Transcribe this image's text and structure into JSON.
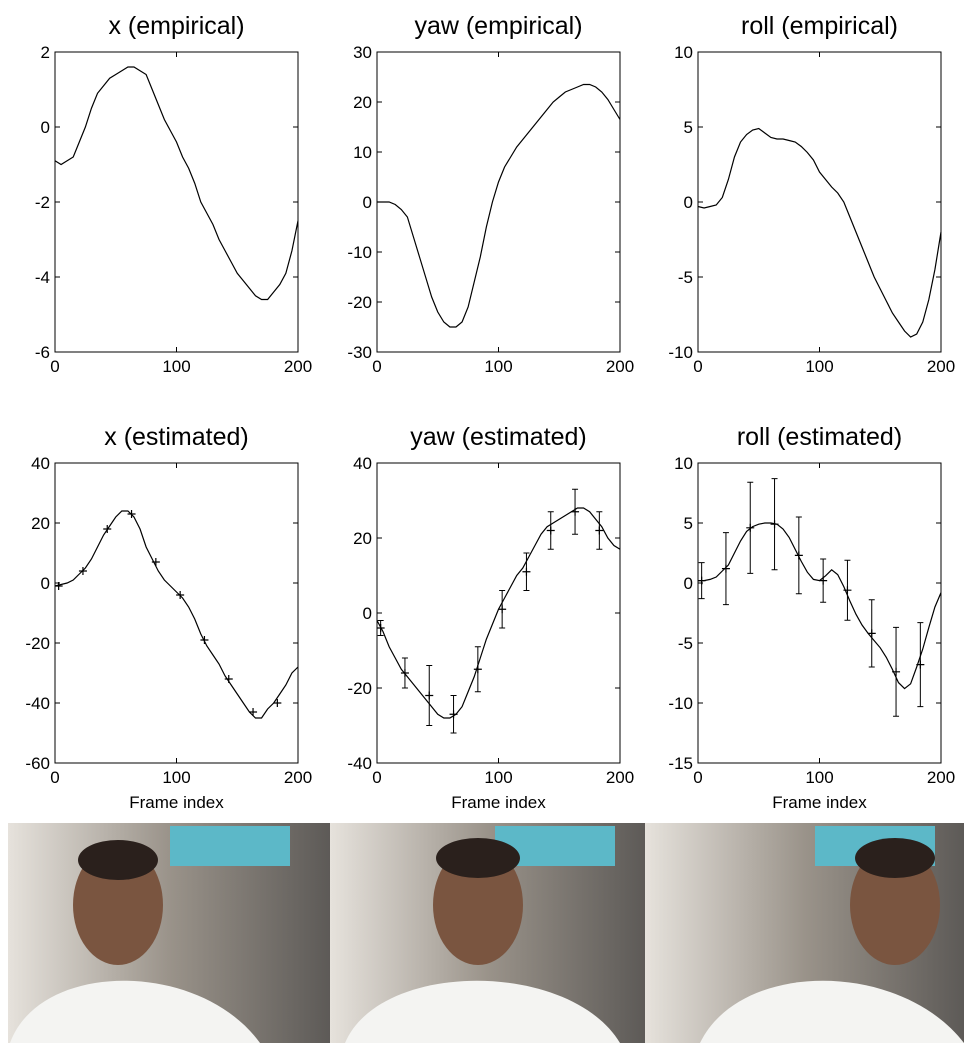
{
  "chart_data": [
    {
      "type": "line",
      "title": "x (empirical)",
      "xlim": [
        0,
        200
      ],
      "xticks": [
        0,
        100,
        200
      ],
      "ylim": [
        -6,
        2
      ],
      "yticks": [
        -6,
        -4,
        -2,
        0,
        2
      ],
      "x": [
        0,
        5,
        10,
        15,
        20,
        25,
        30,
        35,
        40,
        45,
        50,
        55,
        60,
        65,
        70,
        75,
        80,
        85,
        90,
        95,
        100,
        105,
        110,
        115,
        120,
        125,
        130,
        135,
        140,
        145,
        150,
        155,
        160,
        165,
        170,
        175,
        180,
        185,
        190,
        195,
        200
      ],
      "series": [
        {
          "color": "#000000",
          "values": [
            -0.9,
            -1.0,
            -0.9,
            -0.8,
            -0.4,
            0.0,
            0.5,
            0.9,
            1.1,
            1.3,
            1.4,
            1.5,
            1.6,
            1.6,
            1.5,
            1.4,
            1.0,
            0.6,
            0.2,
            -0.1,
            -0.4,
            -0.8,
            -1.1,
            -1.5,
            -2.0,
            -2.3,
            -2.6,
            -3.0,
            -3.3,
            -3.6,
            -3.9,
            -4.1,
            -4.3,
            -4.5,
            -4.6,
            -4.6,
            -4.4,
            -4.2,
            -3.9,
            -3.3,
            -2.5
          ]
        }
      ]
    },
    {
      "type": "line",
      "title": "yaw (empirical)",
      "xlim": [
        0,
        200
      ],
      "xticks": [
        0,
        100,
        200
      ],
      "ylim": [
        -30,
        30
      ],
      "yticks": [
        -30,
        -20,
        -10,
        0,
        10,
        20,
        30
      ],
      "x": [
        0,
        5,
        10,
        15,
        20,
        25,
        30,
        35,
        40,
        45,
        50,
        55,
        60,
        65,
        70,
        75,
        80,
        85,
        90,
        95,
        100,
        105,
        110,
        115,
        120,
        125,
        130,
        135,
        140,
        145,
        150,
        155,
        160,
        165,
        170,
        175,
        180,
        185,
        190,
        195,
        200
      ],
      "series": [
        {
          "color": "#000000",
          "values": [
            0,
            0,
            0,
            -0.5,
            -1.5,
            -3,
            -7,
            -11,
            -15,
            -19,
            -22,
            -24,
            -25,
            -25,
            -24,
            -21,
            -16,
            -11,
            -5,
            0,
            4,
            7,
            9,
            11,
            12.5,
            14,
            15.5,
            17,
            18.5,
            20,
            21,
            22,
            22.5,
            23,
            23.5,
            23.5,
            23,
            22,
            20.5,
            18.5,
            16.5
          ]
        }
      ]
    },
    {
      "type": "line",
      "title": "roll (empirical)",
      "xlim": [
        0,
        200
      ],
      "xticks": [
        0,
        100,
        200
      ],
      "ylim": [
        -10,
        10
      ],
      "yticks": [
        -10,
        -5,
        0,
        5,
        10
      ],
      "x": [
        0,
        5,
        10,
        15,
        20,
        25,
        30,
        35,
        40,
        45,
        50,
        55,
        60,
        65,
        70,
        75,
        80,
        85,
        90,
        95,
        100,
        105,
        110,
        115,
        120,
        125,
        130,
        135,
        140,
        145,
        150,
        155,
        160,
        165,
        170,
        175,
        180,
        185,
        190,
        195,
        200
      ],
      "series": [
        {
          "color": "#000000",
          "values": [
            -0.3,
            -0.4,
            -0.3,
            -0.2,
            0.3,
            1.5,
            3.0,
            4.0,
            4.5,
            4.8,
            4.9,
            4.6,
            4.3,
            4.2,
            4.2,
            4.1,
            4.0,
            3.7,
            3.3,
            2.8,
            2.0,
            1.5,
            1.0,
            0.6,
            0,
            -1.0,
            -2.0,
            -3.0,
            -4.0,
            -5.0,
            -5.8,
            -6.6,
            -7.4,
            -8.0,
            -8.6,
            -9.0,
            -8.8,
            -8.0,
            -6.5,
            -4.5,
            -2.0
          ]
        }
      ]
    },
    {
      "type": "line",
      "title": "x (estimated)",
      "xlabel": "Frame index",
      "xlim": [
        0,
        200
      ],
      "xticks": [
        0,
        100,
        200
      ],
      "ylim": [
        -60,
        40
      ],
      "yticks": [
        -60,
        -40,
        -20,
        0,
        20,
        40
      ],
      "x": [
        0,
        5,
        10,
        15,
        20,
        25,
        30,
        35,
        40,
        45,
        50,
        55,
        60,
        65,
        70,
        75,
        80,
        85,
        90,
        95,
        100,
        105,
        110,
        115,
        120,
        125,
        130,
        135,
        140,
        145,
        150,
        155,
        160,
        165,
        170,
        175,
        180,
        185,
        190,
        195,
        200
      ],
      "series": [
        {
          "color": "#000000",
          "values": [
            -1,
            -0.5,
            0,
            1,
            3,
            5,
            8,
            12,
            16,
            19,
            22,
            24,
            24,
            22,
            18,
            12,
            8,
            4,
            1,
            -1,
            -3,
            -5,
            -8,
            -12,
            -17,
            -21,
            -24,
            -27,
            -31,
            -34,
            -37,
            -40,
            -43,
            -45,
            -45,
            -42,
            -40,
            -37,
            -34,
            -30,
            -28
          ]
        }
      ],
      "markers": {
        "x": [
          3,
          23,
          43,
          63,
          83,
          103,
          123,
          143,
          163,
          183
        ],
        "values": [
          -1,
          4,
          18,
          23,
          7,
          -4,
          -19,
          -32,
          -43,
          -40
        ]
      }
    },
    {
      "type": "line",
      "title": "yaw (estimated)",
      "xlabel": "Frame index",
      "xlim": [
        0,
        200
      ],
      "xticks": [
        0,
        100,
        200
      ],
      "ylim": [
        -40,
        40
      ],
      "yticks": [
        -40,
        -20,
        0,
        20,
        40
      ],
      "x": [
        0,
        5,
        10,
        15,
        20,
        25,
        30,
        35,
        40,
        45,
        50,
        55,
        60,
        65,
        70,
        75,
        80,
        85,
        90,
        95,
        100,
        105,
        110,
        115,
        120,
        125,
        130,
        135,
        140,
        145,
        150,
        155,
        160,
        165,
        170,
        175,
        180,
        185,
        190,
        195,
        200
      ],
      "series": [
        {
          "color": "#000000",
          "values": [
            -2,
            -5,
            -9,
            -12,
            -15,
            -17,
            -19,
            -21,
            -23,
            -25,
            -27,
            -28,
            -28,
            -27,
            -25,
            -21,
            -17,
            -12,
            -7,
            -3,
            1,
            4,
            7,
            10,
            12,
            15,
            18,
            21,
            23,
            24,
            25,
            26,
            27,
            28,
            28,
            27,
            25,
            23,
            20,
            18,
            17
          ]
        }
      ],
      "markers": {
        "x": [
          3,
          23,
          43,
          63,
          83,
          103,
          123,
          143,
          163,
          183
        ],
        "values": [
          -4,
          -16,
          -22,
          -27,
          -15,
          1,
          11,
          22,
          27,
          22
        ],
        "errors": [
          2,
          4,
          8,
          5,
          6,
          5,
          5,
          5,
          6,
          5
        ]
      }
    },
    {
      "type": "line",
      "title": "roll (estimated)",
      "xlabel": "Frame index",
      "xlim": [
        0,
        200
      ],
      "xticks": [
        0,
        100,
        200
      ],
      "ylim": [
        -15,
        10
      ],
      "yticks": [
        -15,
        -10,
        -5,
        0,
        5,
        10
      ],
      "x": [
        0,
        5,
        10,
        15,
        20,
        25,
        30,
        35,
        40,
        45,
        50,
        55,
        60,
        65,
        70,
        75,
        80,
        85,
        90,
        95,
        100,
        105,
        110,
        115,
        120,
        125,
        130,
        135,
        140,
        145,
        150,
        155,
        160,
        165,
        170,
        175,
        180,
        185,
        190,
        195,
        200
      ],
      "series": [
        {
          "color": "#000000",
          "values": [
            0.2,
            0.2,
            0.3,
            0.5,
            1,
            1.5,
            2.5,
            3.5,
            4.3,
            4.7,
            4.9,
            5,
            5,
            4.9,
            4.5,
            3.8,
            2.8,
            1.8,
            0.9,
            0.3,
            0.2,
            0.6,
            1.1,
            0.7,
            -0.3,
            -1.5,
            -2.6,
            -3.5,
            -4.2,
            -4.8,
            -5.4,
            -6.2,
            -7.2,
            -8.3,
            -8.8,
            -8.4,
            -7.0,
            -5.5,
            -3.7,
            -2,
            -0.8
          ]
        }
      ],
      "markers": {
        "x": [
          3,
          23,
          43,
          63,
          83,
          103,
          123,
          143,
          163,
          183
        ],
        "values": [
          0.2,
          1.2,
          4.6,
          4.9,
          2.3,
          0.2,
          -0.6,
          -4.2,
          -7.4,
          -6.8
        ],
        "errors": [
          1.5,
          3,
          3.8,
          3.8,
          3.2,
          1.8,
          2.5,
          2.8,
          3.7,
          3.5
        ]
      }
    }
  ]
}
